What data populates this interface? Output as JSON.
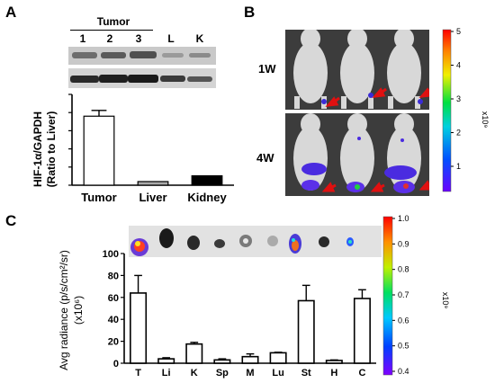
{
  "panels": {
    "a": {
      "letter": "A",
      "tumor_header": "Tumor",
      "lanes": [
        "1",
        "2",
        "3",
        "L",
        "K"
      ],
      "chart_data": {
        "type": "bar",
        "categories": [
          "Tumor",
          "Liver",
          "Kidney"
        ],
        "values": [
          19,
          1,
          2.6
        ],
        "errors": [
          1.6,
          0,
          0
        ],
        "fills": [
          "#ffffff",
          "#aaaaaa",
          "#000000"
        ],
        "ylabel_line1": "HIF-1α/GAPDH",
        "ylabel_line2": "(Ratio to Liver)",
        "ylim": [
          0,
          25
        ],
        "yticks": [
          0,
          5,
          10,
          15,
          20,
          25
        ]
      }
    },
    "b": {
      "letter": "B",
      "row_labels": [
        "1W",
        "4W"
      ],
      "scale": {
        "ticks": [
          "1",
          "2",
          "3",
          "4",
          "5"
        ],
        "exponent": "x10⁹"
      }
    },
    "c": {
      "letter": "C",
      "chart_data": {
        "type": "bar",
        "categories": [
          "T",
          "Li",
          "K",
          "Sp",
          "M",
          "Lu",
          "St",
          "H",
          "C"
        ],
        "values": [
          64,
          4,
          17.5,
          3,
          6,
          9.5,
          57,
          2.5,
          59
        ],
        "errors": [
          16,
          1,
          1.5,
          1,
          2.5,
          0.5,
          14,
          0.5,
          8
        ],
        "ylabel_line1": "Avg radiance (p/s/cm²/sr)",
        "ylabel_line2": "(x10⁶)",
        "ylim": [
          0,
          100
        ],
        "yticks": [
          0,
          20,
          40,
          60,
          80,
          100
        ]
      },
      "scale": {
        "ticks": [
          "0.4",
          "0.5",
          "0.6",
          "0.7",
          "0.8",
          "0.9",
          "1.0"
        ],
        "exponent": "x10⁹"
      }
    }
  }
}
